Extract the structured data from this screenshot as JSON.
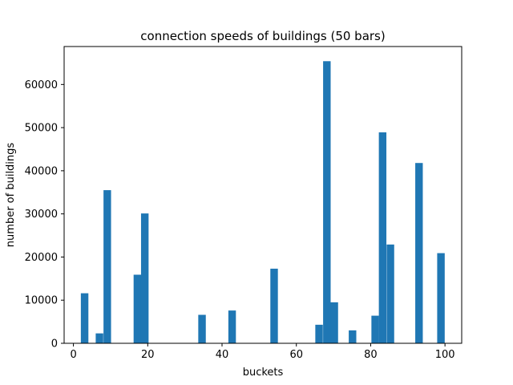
{
  "chart_data": {
    "type": "bar",
    "title": "connection speeds of buildings (50 bars)",
    "xlabel": "buckets",
    "ylabel": "number of buildings",
    "xlim": [
      -2.5,
      104.5
    ],
    "ylim": [
      0,
      68800
    ],
    "bin_width": 2.03,
    "xticks": [
      0,
      20,
      40,
      60,
      80,
      100
    ],
    "yticks": [
      0,
      10000,
      20000,
      30000,
      40000,
      50000,
      60000
    ],
    "bar_color": "#1f77b4",
    "grid": false,
    "legend": "none",
    "bars": [
      {
        "x_start": 2.0,
        "value": 11600
      },
      {
        "x_start": 6.0,
        "value": 2300
      },
      {
        "x_start": 8.1,
        "value": 35500
      },
      {
        "x_start": 16.2,
        "value": 15900
      },
      {
        "x_start": 18.2,
        "value": 30100
      },
      {
        "x_start": 33.6,
        "value": 6600
      },
      {
        "x_start": 41.7,
        "value": 7600
      },
      {
        "x_start": 53.0,
        "value": 17300
      },
      {
        "x_start": 65.1,
        "value": 4300
      },
      {
        "x_start": 67.2,
        "value": 65400
      },
      {
        "x_start": 69.2,
        "value": 9500
      },
      {
        "x_start": 74.1,
        "value": 3000
      },
      {
        "x_start": 80.2,
        "value": 6400
      },
      {
        "x_start": 82.2,
        "value": 48900
      },
      {
        "x_start": 84.3,
        "value": 22900
      },
      {
        "x_start": 92.0,
        "value": 41800
      },
      {
        "x_start": 97.9,
        "value": 20900
      }
    ]
  }
}
